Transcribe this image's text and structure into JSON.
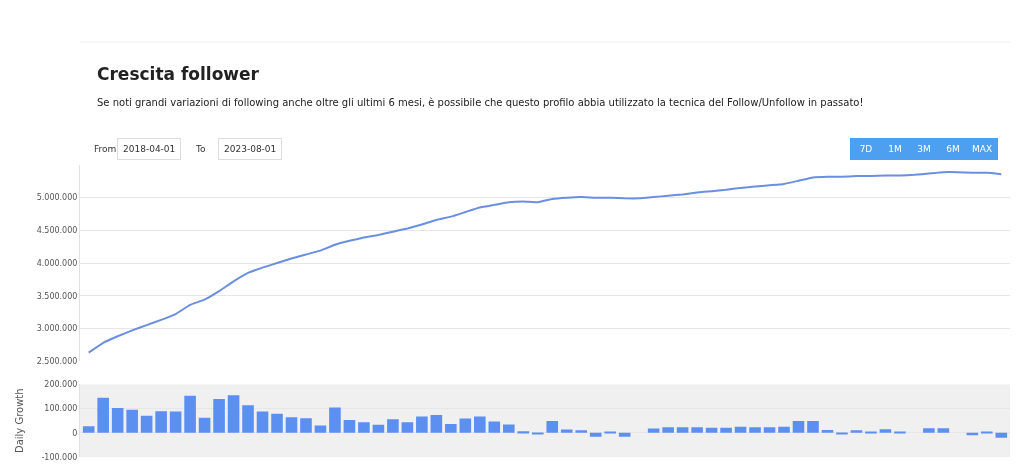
{
  "chart_data": [
    {
      "type": "line",
      "title": "Crescita follower",
      "subtitle": "Se noti grandi variazioni di following anche oltre gli ultimi 6 mesi, è possibile che questo profilo abbia utilizzato la tecnica del Follow/Unfollow in passato!",
      "annotations": [
        "From",
        "2018-04-01",
        "To",
        "2023-08-01",
        "7D",
        "1M",
        "3M",
        "6M",
        "MAX"
      ],
      "categories": [
        null,
        null,
        null,
        null,
        null,
        null,
        null,
        null,
        null,
        null,
        null,
        null,
        null,
        null,
        null,
        null,
        null,
        null,
        null,
        null,
        null,
        null,
        null,
        null,
        null,
        null,
        null,
        null,
        null,
        null,
        null,
        null,
        null,
        null,
        null,
        null,
        null,
        null,
        null,
        null,
        null,
        null,
        null,
        null,
        null,
        null,
        null,
        null,
        null,
        null,
        null,
        null,
        null,
        null,
        null,
        null,
        null,
        null,
        null,
        null,
        null,
        null,
        null,
        null
      ],
      "series": [
        {
          "color": "#6a8fe0",
          "values": [
            2630000,
            2780000,
            2880000,
            2970000,
            3050000,
            3130000,
            3220000,
            3360000,
            3440000,
            3570000,
            3720000,
            3850000,
            3930000,
            4000000,
            4070000,
            4130000,
            4190000,
            4280000,
            4340000,
            4390000,
            4430000,
            4480000,
            4530000,
            4590000,
            4660000,
            4710000,
            4780000,
            4850000,
            4890000,
            4930000,
            4940000,
            4930000,
            4980000,
            5000000,
            5010000,
            5000000,
            5000000,
            4990000,
            4990000,
            5010000,
            5030000,
            5050000,
            5080000,
            5100000,
            5120000,
            5150000,
            5170000,
            5190000,
            5210000,
            5260000,
            5310000,
            5320000,
            5320000,
            5330000,
            5330000,
            5340000,
            5340000,
            5350000,
            5370000,
            5390000,
            5390000,
            5380000,
            5380000,
            5360000
          ]
        }
      ],
      "ylim": [
        2500000,
        5500000
      ],
      "yticks": [
        {
          "value": 2500000,
          "label": "2.500.000"
        },
        {
          "value": 3000000,
          "label": "3.000.000"
        },
        {
          "value": 3500000,
          "label": "3.500.000"
        },
        {
          "value": 4000000,
          "label": "4.000.000"
        },
        {
          "value": 4500000,
          "label": "4.500.000"
        },
        {
          "value": 5000000,
          "label": "5.000.000"
        }
      ],
      "grid": "y",
      "tick_labels": "y",
      "marker": "none",
      "line_style": "solid"
    },
    {
      "type": "bar",
      "ylabel": "Daily Growth",
      "categories": [
        null,
        null,
        null,
        null,
        null,
        null,
        null,
        null,
        null,
        null,
        null,
        null,
        null,
        null,
        null,
        null,
        null,
        null,
        null,
        null,
        null,
        null,
        null,
        null,
        null,
        null,
        null,
        null,
        null,
        null,
        null,
        null,
        null,
        null,
        null,
        null,
        null,
        null,
        null,
        null,
        null,
        null,
        null,
        null,
        null,
        null,
        null,
        null,
        null,
        null,
        null,
        null,
        null,
        null,
        null,
        null,
        null,
        null,
        null,
        null,
        null,
        null,
        null,
        null
      ],
      "series": [
        {
          "color": "#5b8ff0",
          "values": [
            27000,
            145000,
            103000,
            95000,
            71000,
            89000,
            88000,
            153000,
            62000,
            140000,
            155000,
            114000,
            88000,
            79000,
            64000,
            60000,
            30000,
            105000,
            53000,
            44000,
            33000,
            56000,
            44000,
            68000,
            74000,
            37000,
            59000,
            68000,
            47000,
            34000,
            7000,
            -5000,
            49000,
            14000,
            11000,
            -16000,
            4000,
            -16000,
            0,
            18000,
            23000,
            23000,
            23000,
            21000,
            21000,
            25000,
            23000,
            23000,
            25000,
            49000,
            49000,
            12000,
            -7000,
            11000,
            4000,
            15000,
            3000,
            0,
            19000,
            19000,
            0,
            -10000,
            4000,
            -20000
          ]
        }
      ],
      "ylim": [
        -100000,
        200000
      ],
      "yticks": [
        {
          "value": -100000,
          "label": "-100.000"
        },
        {
          "value": 0,
          "label": "0"
        },
        {
          "value": 100000,
          "label": "100.000"
        },
        {
          "value": 200000,
          "label": "200.000"
        }
      ],
      "grid": "y",
      "tick_labels": "y"
    }
  ]
}
